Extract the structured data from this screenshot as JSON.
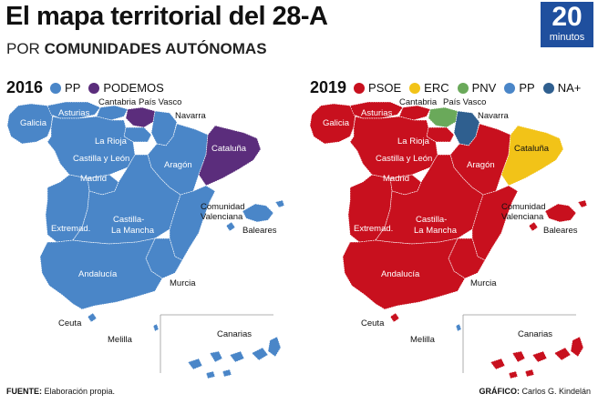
{
  "header": {
    "title": "El mapa territorial del 28-A",
    "subtitle_prefix": "POR ",
    "subtitle_bold": "COMUNIDADES AUTÓNOMAS"
  },
  "logo": {
    "number": "20",
    "word": "minutos"
  },
  "maps": [
    {
      "year": "2016",
      "legend": [
        {
          "party": "PP",
          "color": "#4a86c8"
        },
        {
          "party": "PODEMOS",
          "color": "#5b2d7c"
        }
      ],
      "regions": {
        "Galicia": "PP",
        "Asturias": "PP",
        "Cantabria": "PP",
        "País Vasco": "PODEMOS",
        "Navarra": "PP",
        "La Rioja": "PP",
        "Castilla y León": "PP",
        "Madrid": "PP",
        "Aragón": "PP",
        "Cataluña": "PODEMOS",
        "Extremad.": "PP",
        "Castilla-La Mancha": "PP",
        "Comunidad Valenciana": "PP",
        "Baleares": "PP",
        "Andalucía": "PP",
        "Murcia": "PP",
        "Ceuta": "PP",
        "Melilla": "PP",
        "Canarias": "PP"
      }
    },
    {
      "year": "2019",
      "legend": [
        {
          "party": "PSOE",
          "color": "#c8101e"
        },
        {
          "party": "ERC",
          "color": "#f2c318"
        },
        {
          "party": "PNV",
          "color": "#6aa95a"
        },
        {
          "party": "PP",
          "color": "#4a86c8"
        },
        {
          "party": "NA+",
          "color": "#2f5f8f"
        }
      ],
      "regions": {
        "Galicia": "PSOE",
        "Asturias": "PSOE",
        "Cantabria": "PSOE",
        "País Vasco": "PNV",
        "Navarra": "NA+",
        "La Rioja": "PSOE",
        "Castilla y León": "PSOE",
        "Madrid": "PSOE",
        "Aragón": "PSOE",
        "Cataluña": "ERC",
        "Extremad.": "PSOE",
        "Castilla-La Mancha": "PSOE",
        "Comunidad Valenciana": "PSOE",
        "Baleares": "PSOE",
        "Andalucía": "PSOE",
        "Murcia": "PSOE",
        "Ceuta": "PSOE",
        "Melilla": "PP",
        "Canarias": "PSOE"
      }
    }
  ],
  "labels": {
    "galicia": "Galicia",
    "asturias": "Asturias",
    "cantabria": "Cantabria",
    "pais_vasco": "País Vasco",
    "navarra": "Navarra",
    "la_rioja": "La Rioja",
    "castilla_leon": "Castilla y León",
    "madrid": "Madrid",
    "aragon": "Aragón",
    "cataluna": "Cataluña",
    "extremadura": "Extremad.",
    "clm_1": "Castilla-",
    "clm_2": "La Mancha",
    "valenciana_1": "Comunidad",
    "valenciana_2": "Valenciana",
    "baleares": "Baleares",
    "andalucia": "Andalucía",
    "murcia": "Murcia",
    "ceuta": "Ceuta",
    "melilla": "Melilla",
    "canarias": "Canarias"
  },
  "footer": {
    "source_label": "FUENTE:",
    "source_text": " Elaboración propia.",
    "graphic_label": "GRÁFICO:",
    "graphic_text": " Carlos G. Kindelán"
  }
}
